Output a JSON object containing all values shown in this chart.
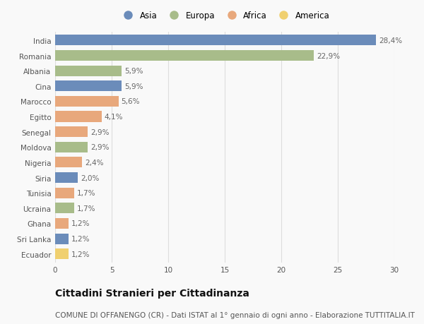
{
  "countries": [
    "India",
    "Romania",
    "Albania",
    "Cina",
    "Marocco",
    "Egitto",
    "Senegal",
    "Moldova",
    "Nigeria",
    "Siria",
    "Tunisia",
    "Ucraina",
    "Ghana",
    "Sri Lanka",
    "Ecuador"
  ],
  "values": [
    28.4,
    22.9,
    5.9,
    5.9,
    5.6,
    4.1,
    2.9,
    2.9,
    2.4,
    2.0,
    1.7,
    1.7,
    1.2,
    1.2,
    1.2
  ],
  "labels": [
    "28,4%",
    "22,9%",
    "5,9%",
    "5,9%",
    "5,6%",
    "4,1%",
    "2,9%",
    "2,9%",
    "2,4%",
    "2,0%",
    "1,7%",
    "1,7%",
    "1,2%",
    "1,2%",
    "1,2%"
  ],
  "continents": [
    "Asia",
    "Europa",
    "Europa",
    "Asia",
    "Africa",
    "Africa",
    "Africa",
    "Europa",
    "Africa",
    "Asia",
    "Africa",
    "Europa",
    "Africa",
    "Asia",
    "America"
  ],
  "continent_colors": {
    "Asia": "#6b8cba",
    "Europa": "#a8bc8a",
    "Africa": "#e8a87c",
    "America": "#f0d070"
  },
  "legend_order": [
    "Asia",
    "Europa",
    "Africa",
    "America"
  ],
  "title": "Cittadini Stranieri per Cittadinanza",
  "subtitle": "COMUNE DI OFFANENGO (CR) - Dati ISTAT al 1° gennaio di ogni anno - Elaborazione TUTTITALIA.IT",
  "xlim": [
    0,
    30
  ],
  "xticks": [
    0,
    5,
    10,
    15,
    20,
    25,
    30
  ],
  "background_color": "#f9f9f9",
  "bar_height": 0.7,
  "title_fontsize": 10,
  "subtitle_fontsize": 7.5,
  "label_fontsize": 7.5,
  "tick_fontsize": 7.5,
  "legend_fontsize": 8.5
}
